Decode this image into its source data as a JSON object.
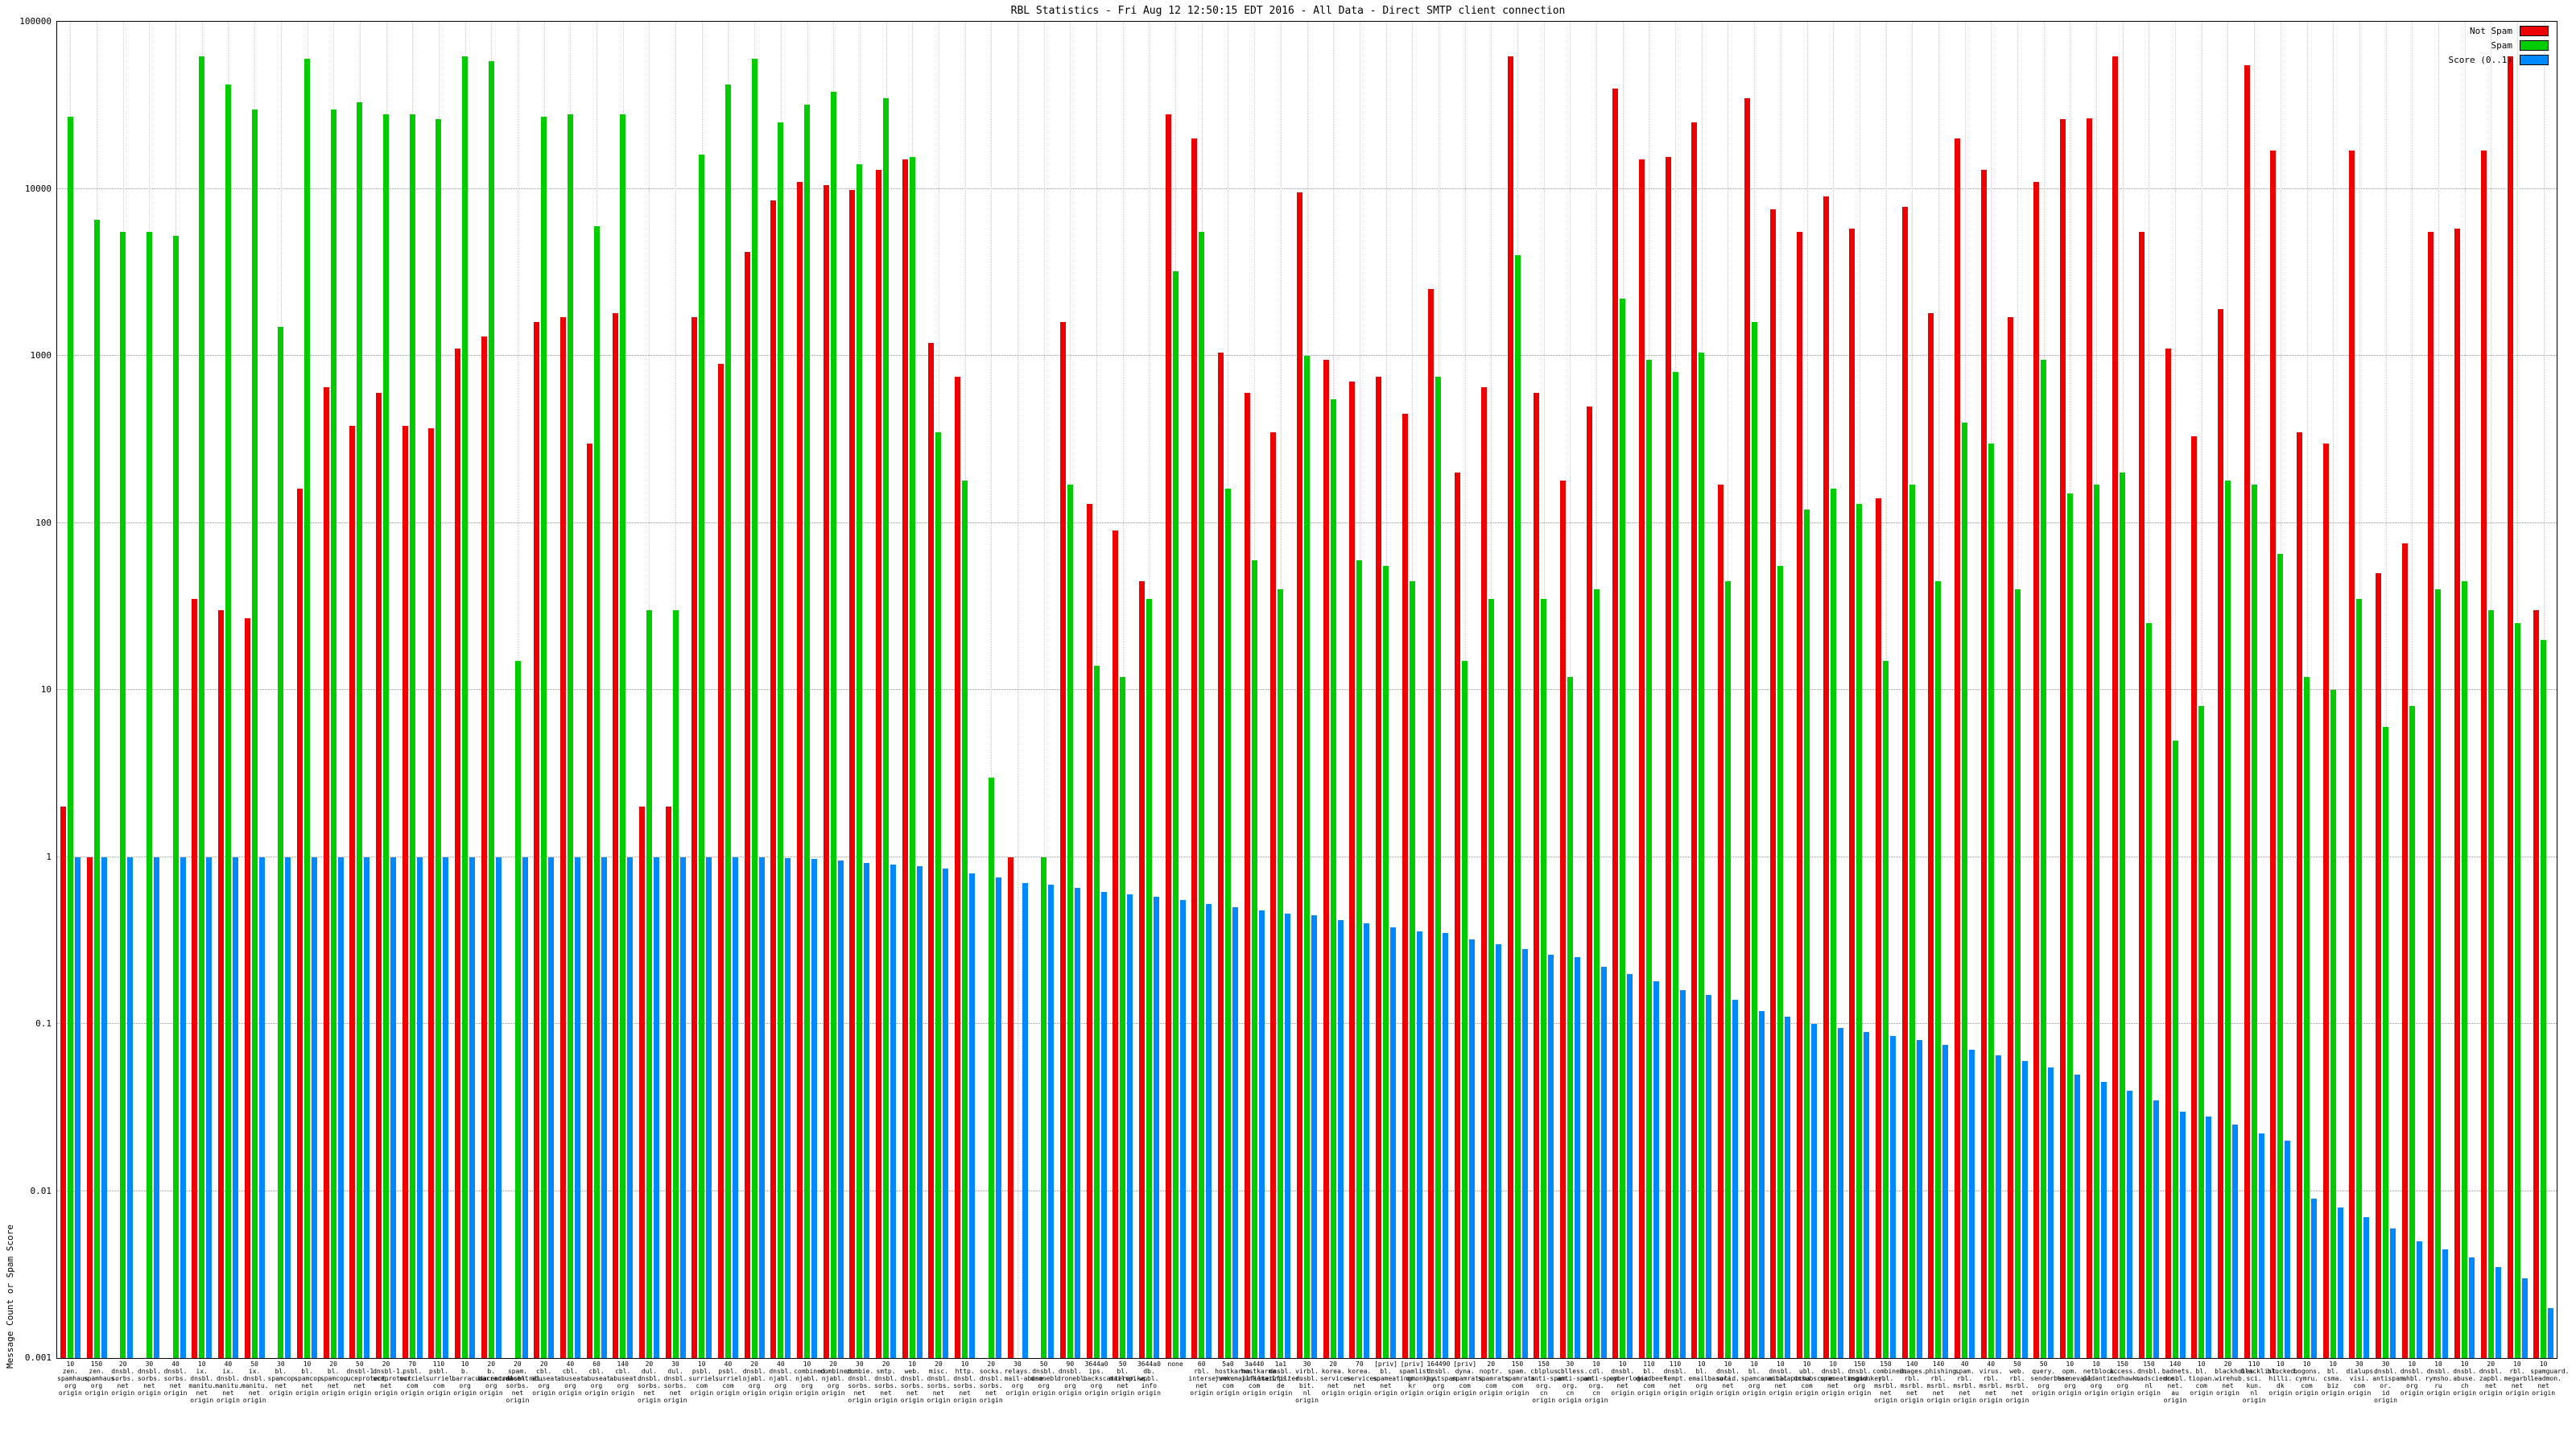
{
  "title": "RBL Statistics - Fri Aug 12 12:50:15 EDT 2016 - All Data - Direct SMTP client connection",
  "ylabel": "Message Count or Spam Score",
  "legend": [
    {
      "label": "Not Spam",
      "color": "#ee0000"
    },
    {
      "label": "Spam",
      "color": "#00cc00"
    },
    {
      "label": "Score (0..1)",
      "color": "#0088ff"
    }
  ],
  "chart_data": {
    "type": "bar",
    "log_scale": true,
    "ylim": [
      0.001,
      100000
    ],
    "yticks": [
      "100000",
      "10000",
      "1000",
      "100",
      "10",
      "1",
      "0.1",
      "0.01",
      "0.001"
    ],
    "grid": true,
    "legend_position": "top-right",
    "series_keys": [
      "not_spam",
      "spam",
      "score"
    ],
    "series_names": [
      "Not Spam",
      "Spam",
      "Score (0..1)"
    ],
    "groups": [
      {
        "label": "10 zen. spamhaus. org origin",
        "not_spam": 2,
        "spam": 27000,
        "score": 1.0
      },
      {
        "label": "150 zen. spamhaus. org origin",
        "not_spam": 1,
        "spam": 6500,
        "score": 1.0
      },
      {
        "label": "20 dnsbl. sorbs. net origin",
        "not_spam": 0,
        "spam": 5500,
        "score": 1.0
      },
      {
        "label": "30 dnsbl. sorbs. net origin",
        "not_spam": 0,
        "spam": 5500,
        "score": 1.0
      },
      {
        "label": "40 dnsbl. sorbs. net origin",
        "not_spam": 0,
        "spam": 5200,
        "score": 1.0
      },
      {
        "label": "10 ix. dnsbl. manitu. net origin",
        "not_spam": 35,
        "spam": 62000,
        "score": 1.0
      },
      {
        "label": "40 ix. dnsbl. manitu. net origin",
        "not_spam": 30,
        "spam": 42000,
        "score": 1.0
      },
      {
        "label": "50 ix. dnsbl. manitu. net origin",
        "not_spam": 27,
        "spam": 30000,
        "score": 1.0
      },
      {
        "label": "30 bl. spamcop. net origin",
        "not_spam": 0,
        "spam": 1500,
        "score": 1.0
      },
      {
        "label": "10 bl. spamcop. net origin",
        "not_spam": 160,
        "spam": 60000,
        "score": 1.0
      },
      {
        "label": "20 bl. spamcop. net origin",
        "not_spam": 650,
        "spam": 30000,
        "score": 1.0
      },
      {
        "label": "50 dnsbl-1. uceprotect. net origin",
        "not_spam": 380,
        "spam": 33000,
        "score": 1.0
      },
      {
        "label": "20 dnsbl-1. uceprotect. net origin",
        "not_spam": 600,
        "spam": 28000,
        "score": 1.0
      },
      {
        "label": "70 psbl. surriel. com origin",
        "not_spam": 380,
        "spam": 28000,
        "score": 1.0
      },
      {
        "label": "110 psbl. surriel. com origin",
        "not_spam": 370,
        "spam": 26000,
        "score": 1.0
      },
      {
        "label": "10 b. barracudacentral. org origin",
        "not_spam": 1100,
        "spam": 62000,
        "score": 1.0
      },
      {
        "label": "20 b. barracudacentral. org origin",
        "not_spam": 1300,
        "spam": 58000,
        "score": 1.0
      },
      {
        "label": "20 spam. dnsbl. sorbs. net origin",
        "not_spam": 0,
        "spam": 15,
        "score": 1.0
      },
      {
        "label": "20 cbl. abuseat. org origin",
        "not_spam": 1600,
        "spam": 27000,
        "score": 1.0
      },
      {
        "label": "40 cbl. abuseat. org origin",
        "not_spam": 1700,
        "spam": 28000,
        "score": 1.0
      },
      {
        "label": "60 cbl. abuseat. org origin",
        "not_spam": 300,
        "spam": 6000,
        "score": 1.0
      },
      {
        "label": "140 cbl. abuseat. org origin",
        "not_spam": 1800,
        "spam": 28000,
        "score": 1.0
      },
      {
        "label": "20 dul. dnsbl. sorbs. net origin",
        "not_spam": 2,
        "spam": 30,
        "score": 1.0
      },
      {
        "label": "30 dul. dnsbl. sorbs. net origin",
        "not_spam": 2,
        "spam": 30,
        "score": 1.0
      },
      {
        "label": "10 psbl. surriel. com origin",
        "not_spam": 1700,
        "spam": 16000,
        "score": 1.0
      },
      {
        "label": "40 psbl. surriel. com origin",
        "not_spam": 900,
        "spam": 42000,
        "score": 1.0
      },
      {
        "label": "20 dnsbl. njabl. org origin",
        "not_spam": 4200,
        "spam": 60000,
        "score": 1.0
      },
      {
        "label": "40 dnsbl. njabl. org origin",
        "not_spam": 8500,
        "spam": 25000,
        "score": 0.98
      },
      {
        "label": "10 combined. njabl. org origin",
        "not_spam": 11000,
        "spam": 32000,
        "score": 0.97
      },
      {
        "label": "20 combined. njabl. org origin",
        "not_spam": 10500,
        "spam": 38000,
        "score": 0.95
      },
      {
        "label": "30 zombie. dnsbl. sorbs. net origin",
        "not_spam": 9800,
        "spam": 14000,
        "score": 0.92
      },
      {
        "label": "20 smtp. dnsbl. sorbs. net origin",
        "not_spam": 13000,
        "spam": 35000,
        "score": 0.9
      },
      {
        "label": "10 web. dnsbl. sorbs. net origin",
        "not_spam": 15000,
        "spam": 15500,
        "score": 0.88
      },
      {
        "label": "20 misc. dnsbl. sorbs. net origin",
        "not_spam": 1200,
        "spam": 350,
        "score": 0.85
      },
      {
        "label": "10 http. dnsbl. sorbs. net origin",
        "not_spam": 750,
        "spam": 180,
        "score": 0.8
      },
      {
        "label": "20 socks. dnsbl. sorbs. net origin",
        "not_spam": 0,
        "spam": 3,
        "score": 0.75
      },
      {
        "label": "30 relays. mail-abuse. org origin",
        "not_spam": 1,
        "spam": 0,
        "score": 0.7
      },
      {
        "label": "50 dnsbl. dronebl. org origin",
        "not_spam": 0,
        "spam": 1,
        "score": 0.68
      },
      {
        "label": "90 dnsbl. dronebl. org origin",
        "not_spam": 1600,
        "spam": 170,
        "score": 0.65
      },
      {
        "label": "3644a0 ips. backscatterer. org origin",
        "not_spam": 130,
        "spam": 14,
        "score": 0.62
      },
      {
        "label": "50 bl. mailspike. net origin",
        "not_spam": 90,
        "spam": 12,
        "score": 0.6
      },
      {
        "label": "3644a0 db. wpbl. info origin",
        "not_spam": 45,
        "spam": 35,
        "score": 0.58
      },
      {
        "label": "none",
        "not_spam": 28000,
        "spam": 3200,
        "score": 0.55
      },
      {
        "label": "60 rbl. interserver. net origin",
        "not_spam": 20000,
        "spam": 5500,
        "score": 0.52
      },
      {
        "label": "5a0 hostkarma. junkemailfilter. com origin",
        "not_spam": 1050,
        "spam": 160,
        "score": 0.5
      },
      {
        "label": "3a440 hostkarma. junkemailfilter. com origin",
        "not_spam": 600,
        "spam": 60,
        "score": 0.48
      },
      {
        "label": "1a1 dnsbl. inps. de origin",
        "not_spam": 350,
        "spam": 40,
        "score": 0.46
      },
      {
        "label": "30 virbl. dnsbl. bit. nl origin",
        "not_spam": 9500,
        "spam": 1000,
        "score": 0.45
      },
      {
        "label": "20 korea. services. net origin",
        "not_spam": 950,
        "spam": 550,
        "score": 0.42
      },
      {
        "label": "70 korea. services. net origin",
        "not_spam": 700,
        "spam": 60,
        "score": 0.4
      },
      {
        "label": "[priv] bl. spameatingmonkey. net origin",
        "not_spam": 750,
        "spam": 55,
        "score": 0.38
      },
      {
        "label": "[priv] spamlist. or. kr origin",
        "not_spam": 450,
        "spam": 45,
        "score": 0.36
      },
      {
        "label": "164490 dnsbl. justspam. org origin",
        "not_spam": 2500,
        "spam": 750,
        "score": 0.35
      },
      {
        "label": "[priv] dyna. spamrats. com origin",
        "not_spam": 200,
        "spam": 15,
        "score": 0.32
      },
      {
        "label": "20 noptr. spamrats. com origin",
        "not_spam": 650,
        "spam": 35,
        "score": 0.3
      },
      {
        "label": "150 spam. spamrats. com origin",
        "not_spam": 62000,
        "spam": 4000,
        "score": 0.28
      },
      {
        "label": "150 cblplus. anti-spam. org. cn origin",
        "not_spam": 600,
        "spam": 35,
        "score": 0.26
      },
      {
        "label": "30 cblless. anti-spam. org. cn origin",
        "not_spam": 180,
        "spam": 12,
        "score": 0.25
      },
      {
        "label": "10 cdl. anti-spam. org. cn origin",
        "not_spam": 500,
        "spam": 40,
        "score": 0.22
      },
      {
        "label": "10 dnsbl. cyberlogic. net origin",
        "not_spam": 40000,
        "spam": 2200,
        "score": 0.2
      },
      {
        "label": "110 bl. deadbeef. com origin",
        "not_spam": 15000,
        "spam": 950,
        "score": 0.18
      },
      {
        "label": "110 dnsbl. kempt. net origin",
        "not_spam": 15500,
        "spam": 800,
        "score": 0.16
      },
      {
        "label": "10 bl. emailbasura. org origin",
        "not_spam": 25000,
        "spam": 1050,
        "score": 0.15
      },
      {
        "label": "10 dnsbl. solid. net origin",
        "not_spam": 170,
        "spam": 45,
        "score": 0.14
      },
      {
        "label": "10 bl. spamcannibal. org origin",
        "not_spam": 35000,
        "spam": 1600,
        "score": 0.12
      },
      {
        "label": "10 dnsbl. anticaptcha. net origin",
        "not_spam": 7500,
        "spam": 55,
        "score": 0.11
      },
      {
        "label": "10 ubl. unsubscore. com origin",
        "not_spam": 5500,
        "spam": 120,
        "score": 0.1
      },
      {
        "label": "10 dnsbl. spameatingmonkey. net origin",
        "not_spam": 9000,
        "spam": 160,
        "score": 0.095
      },
      {
        "label": "150 dnsbl. msgid. org origin",
        "not_spam": 5800,
        "spam": 130,
        "score": 0.09
      },
      {
        "label": "150 combined. rbl. msrbl. net origin",
        "not_spam": 140,
        "spam": 15,
        "score": 0.085
      },
      {
        "label": "140 images. rbl. msrbl. net origin",
        "not_spam": 7800,
        "spam": 170,
        "score": 0.08
      },
      {
        "label": "140 phishing. rbl. msrbl. net origin",
        "not_spam": 1800,
        "spam": 45,
        "score": 0.075
      },
      {
        "label": "40 spam. rbl. msrbl. net origin",
        "not_spam": 20000,
        "spam": 400,
        "score": 0.07
      },
      {
        "label": "40 virus. rbl. msrbl. net origin",
        "not_spam": 13000,
        "spam": 300,
        "score": 0.065
      },
      {
        "label": "50 web. rbl. msrbl. net origin",
        "not_spam": 1700,
        "spam": 40,
        "score": 0.06
      },
      {
        "label": "50 query. senderbase. org origin",
        "not_spam": 11000,
        "spam": 950,
        "score": 0.055
      },
      {
        "label": "10 opm. tornevall. org origin",
        "not_spam": 26000,
        "spam": 150,
        "score": 0.05
      },
      {
        "label": "10 netblock. pedantic. org origin",
        "not_spam": 26500,
        "spam": 170,
        "score": 0.045
      },
      {
        "label": "150 access. redhawk. org origin",
        "not_spam": 62000,
        "spam": 200,
        "score": 0.04
      },
      {
        "label": "150 dnsbl. madscience. nl origin",
        "not_spam": 5500,
        "spam": 25,
        "score": 0.035
      },
      {
        "label": "140 badnets. dnsbl. net. au origin",
        "not_spam": 1100,
        "spam": 5,
        "score": 0.03
      },
      {
        "label": "10 bl. tiopan. com origin",
        "not_spam": 330,
        "spam": 8,
        "score": 0.028
      },
      {
        "label": "20 blackholes. wirehub. net origin",
        "not_spam": 1900,
        "spam": 180,
        "score": 0.025
      },
      {
        "label": "110 blacklist. sci. kun. nl origin",
        "not_spam": 55000,
        "spam": 170,
        "score": 0.022
      },
      {
        "label": "10 blocked. hilli. dk origin",
        "not_spam": 17000,
        "spam": 65,
        "score": 0.02
      },
      {
        "label": "10 bogons. cymru. com origin",
        "not_spam": 350,
        "spam": 12,
        "score": 0.009
      },
      {
        "label": "10 bl. csma. biz origin",
        "not_spam": 300,
        "spam": 10,
        "score": 0.008
      },
      {
        "label": "30 dialups. visi. com origin",
        "not_spam": 17000,
        "spam": 35,
        "score": 0.007
      },
      {
        "label": "30 dnsbl. antispam. or. id origin",
        "not_spam": 50,
        "spam": 6,
        "score": 0.006
      },
      {
        "label": "10 dnsbl. ahbl. org origin",
        "not_spam": 75,
        "spam": 8,
        "score": 0.005
      },
      {
        "label": "10 dnsbl. rymsho. ru origin",
        "not_spam": 5500,
        "spam": 40,
        "score": 0.0045
      },
      {
        "label": "10 dnsbl. abuse. ch origin",
        "not_spam": 5800,
        "spam": 45,
        "score": 0.004
      },
      {
        "label": "20 dnsbl. zapbl. net origin",
        "not_spam": 17000,
        "spam": 30,
        "score": 0.0035
      },
      {
        "label": "10 rbl. megarbl. net origin",
        "not_spam": 62000,
        "spam": 25,
        "score": 0.003
      },
      {
        "label": "10 spamguard. leadmon. net origin",
        "not_spam": 30,
        "spam": 20,
        "score": 0.002
      }
    ]
  }
}
